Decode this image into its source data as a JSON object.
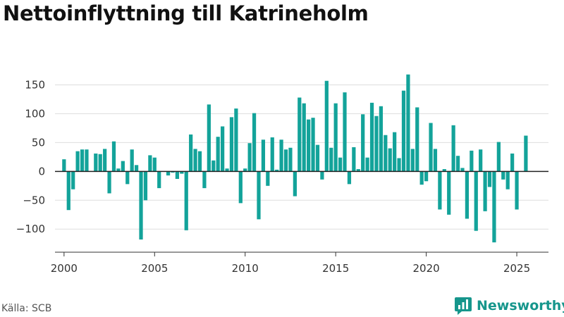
{
  "title": "Nettoinflyttning till Katrineholm",
  "source": "Källa: SCB",
  "brand": "Newsworthy",
  "colors": {
    "bar": "#13a39a",
    "grid": "#dddddd",
    "zero": "#222222",
    "brand": "#16968c"
  },
  "chart_data": {
    "type": "bar",
    "title": "Nettoinflyttning till Katrineholm",
    "xlabel": "",
    "ylabel": "",
    "x_ticks": [
      2000,
      2005,
      2010,
      2015,
      2020,
      2025
    ],
    "y_ticks": [
      150,
      100,
      50,
      0,
      -50,
      -100
    ],
    "y_tick_labels": [
      "150",
      "100",
      "50",
      "0",
      "−50",
      "−100"
    ],
    "xlim": [
      1999.5,
      2026.75
    ],
    "ylim": [
      -140,
      175
    ],
    "grid": true,
    "legend": "none",
    "start_year": 2000,
    "values": [
      21,
      -67,
      -31,
      35,
      38,
      38,
      0,
      31,
      30,
      39,
      -38,
      52,
      5,
      18,
      -22,
      38,
      11,
      -118,
      -50,
      28,
      24,
      -29,
      0,
      -7,
      -2,
      -13,
      -4,
      -102,
      64,
      39,
      35,
      -29,
      116,
      19,
      60,
      78,
      5,
      94,
      109,
      -55,
      5,
      49,
      101,
      -83,
      55,
      -25,
      59,
      3,
      55,
      38,
      41,
      -43,
      128,
      118,
      90,
      93,
      46,
      -14,
      157,
      41,
      118,
      24,
      137,
      -22,
      42,
      4,
      99,
      24,
      119,
      96,
      113,
      63,
      40,
      68,
      23,
      140,
      168,
      39,
      111,
      -23,
      -17,
      84,
      39,
      -66,
      4,
      -75,
      80,
      27,
      6,
      -82,
      36,
      -103,
      38,
      -69,
      -27,
      -123,
      51,
      -14,
      -31,
      31,
      -66,
      0,
      62
    ]
  }
}
